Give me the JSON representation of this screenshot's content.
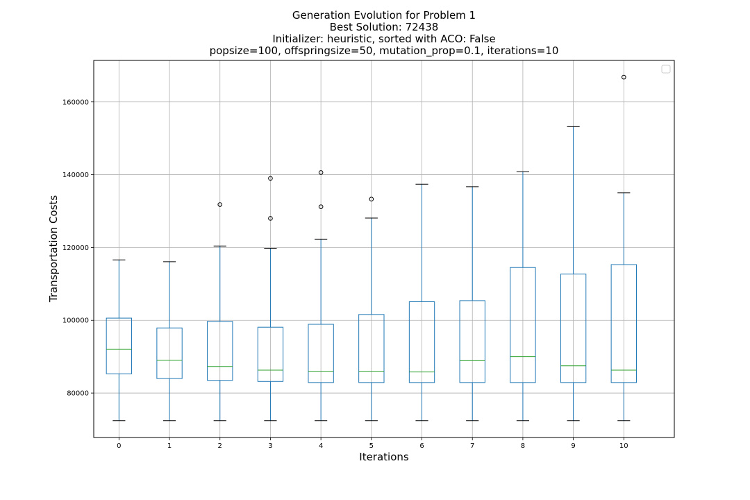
{
  "chart_data": {
    "type": "box",
    "title_lines": [
      "Generation Evolution for Problem 1",
      "Best Solution: 72438",
      "Initializer: heuristic, sorted with ACO: False",
      "popsize=100, offspringsize=50, mutation_prop=0.1, iterations=10"
    ],
    "xlabel": "Iterations",
    "ylabel": "Transportation Costs",
    "ylim": [
      67800,
      171400
    ],
    "y_ticks": [
      80000,
      100000,
      120000,
      140000,
      160000
    ],
    "y_tick_labels": [
      "80000",
      "100000",
      "120000",
      "140000",
      "160000"
    ],
    "categories": [
      "0",
      "1",
      "2",
      "3",
      "4",
      "5",
      "6",
      "7",
      "8",
      "9",
      "10"
    ],
    "grid": true,
    "legend": {
      "placement": "top-right",
      "entries": []
    },
    "colors": {
      "box": "#1f77b4",
      "median": "#2ca02c",
      "whisker": "#1f77b4",
      "cap": "#000000",
      "grid": "#b0b0b0"
    },
    "boxes": [
      {
        "x": "0",
        "whislo": 72438,
        "q1": 85300,
        "med": 92000,
        "q3": 100600,
        "whishi": 116600,
        "fliers": []
      },
      {
        "x": "1",
        "whislo": 72438,
        "q1": 84000,
        "med": 89000,
        "q3": 97900,
        "whishi": 116100,
        "fliers": []
      },
      {
        "x": "2",
        "whislo": 72438,
        "q1": 83500,
        "med": 87300,
        "q3": 99700,
        "whishi": 120400,
        "fliers": [
          131800
        ]
      },
      {
        "x": "3",
        "whislo": 72438,
        "q1": 83200,
        "med": 86300,
        "q3": 98100,
        "whishi": 119800,
        "fliers": [
          128000,
          139000
        ]
      },
      {
        "x": "4",
        "whislo": 72438,
        "q1": 82900,
        "med": 86000,
        "q3": 98900,
        "whishi": 122300,
        "fliers": [
          131200,
          140600
        ]
      },
      {
        "x": "5",
        "whislo": 72438,
        "q1": 82900,
        "med": 86000,
        "q3": 101600,
        "whishi": 128100,
        "fliers": [
          133300
        ]
      },
      {
        "x": "6",
        "whislo": 72438,
        "q1": 82900,
        "med": 85800,
        "q3": 105100,
        "whishi": 137400,
        "fliers": []
      },
      {
        "x": "7",
        "whislo": 72438,
        "q1": 82900,
        "med": 88900,
        "q3": 105400,
        "whishi": 136700,
        "fliers": []
      },
      {
        "x": "8",
        "whislo": 72438,
        "q1": 82900,
        "med": 90000,
        "q3": 114500,
        "whishi": 140800,
        "fliers": []
      },
      {
        "x": "9",
        "whislo": 72438,
        "q1": 82900,
        "med": 87500,
        "q3": 112700,
        "whishi": 153200,
        "fliers": []
      },
      {
        "x": "10",
        "whislo": 72438,
        "q1": 82900,
        "med": 86300,
        "q3": 115300,
        "whishi": 135000,
        "fliers": [
          166800
        ]
      }
    ]
  }
}
